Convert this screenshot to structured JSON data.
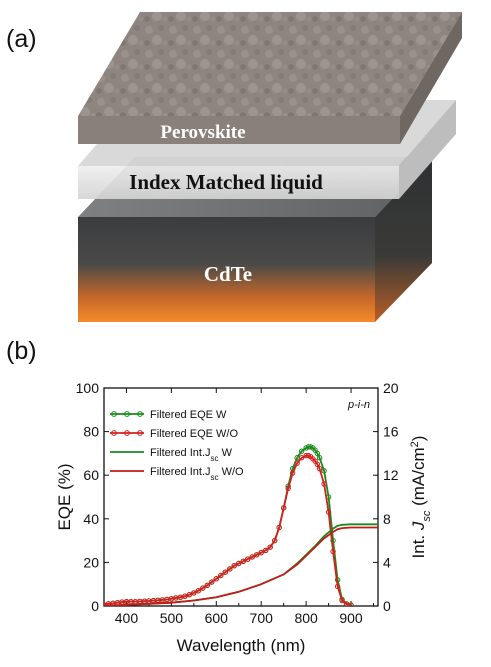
{
  "panel_a": {
    "label": "(a)",
    "layers": {
      "perovskite": "Perovskite",
      "liquid": "Index Matched liquid",
      "cdte": "CdTe"
    }
  },
  "panel_b": {
    "label": "(b)"
  },
  "chart_data": {
    "type": "line",
    "xlabel": "Wavelength (nm)",
    "ylabel": "EQE (%)",
    "y2label_prefix": "Int. ",
    "y2label_italic": "J",
    "y2label_sub": "sc",
    "y2label_suffix": " (mA/cm",
    "y2label_sup": "2",
    "y2label_close": ")",
    "xlim": [
      350,
      960
    ],
    "ylim": [
      0,
      100
    ],
    "y2lim": [
      0,
      20
    ],
    "xticks": [
      "400",
      "500",
      "600",
      "700",
      "800",
      "900"
    ],
    "yticks": [
      "0",
      "20",
      "40",
      "60",
      "80",
      "100"
    ],
    "y2ticks": [
      "0",
      "4",
      "8",
      "12",
      "16",
      "20"
    ],
    "annotation": "p-i-n",
    "legend_position": "top-left",
    "grid": false,
    "series": [
      {
        "name": "Filtered EQE  W",
        "name_main": "Filtered EQE  W",
        "color": "#1a8a1a",
        "axis": "left",
        "markers": true,
        "x": [
          350,
          360,
          370,
          380,
          390,
          400,
          410,
          420,
          430,
          440,
          450,
          460,
          470,
          480,
          490,
          500,
          510,
          520,
          530,
          540,
          550,
          560,
          570,
          580,
          590,
          600,
          610,
          620,
          630,
          640,
          650,
          660,
          670,
          680,
          690,
          700,
          710,
          720,
          730,
          740,
          750,
          760,
          770,
          780,
          790,
          800,
          805,
          810,
          815,
          820,
          825,
          830,
          840,
          850,
          860,
          870,
          880,
          890,
          900
        ],
        "y": [
          0.5,
          1.0,
          1.2,
          1.5,
          1.8,
          2.0,
          2.0,
          2.0,
          2.1,
          2.2,
          2.3,
          2.5,
          2.6,
          2.8,
          3.0,
          3.3,
          3.7,
          4.0,
          4.5,
          5.2,
          6.0,
          7.0,
          8.2,
          9.5,
          11.0,
          12.5,
          14.0,
          15.5,
          17.0,
          18.5,
          19.5,
          20.5,
          21.5,
          22.5,
          23.5,
          24.5,
          25.5,
          27.0,
          30.0,
          36.0,
          45.0,
          55.0,
          63.0,
          68.0,
          71.0,
          72.5,
          73.0,
          73.0,
          72.5,
          71.5,
          70.0,
          68.0,
          62.0,
          50.0,
          30.0,
          12.0,
          3.0,
          1.0,
          0.5
        ]
      },
      {
        "name": "Filtered EQE  W/O",
        "name_main": "Filtered EQE  W/O",
        "color": "#d42020",
        "axis": "left",
        "markers": true,
        "x": [
          350,
          360,
          370,
          380,
          390,
          400,
          410,
          420,
          430,
          440,
          450,
          460,
          470,
          480,
          490,
          500,
          510,
          520,
          530,
          540,
          550,
          560,
          570,
          580,
          590,
          600,
          610,
          620,
          630,
          640,
          650,
          660,
          670,
          680,
          690,
          700,
          710,
          720,
          730,
          740,
          750,
          760,
          770,
          780,
          790,
          800,
          805,
          810,
          815,
          820,
          825,
          830,
          840,
          850,
          860,
          870,
          880,
          890,
          900
        ],
        "y": [
          0.5,
          1.0,
          1.2,
          1.5,
          1.8,
          2.0,
          2.0,
          2.0,
          2.1,
          2.2,
          2.3,
          2.5,
          2.6,
          2.8,
          3.0,
          3.3,
          3.7,
          4.0,
          4.5,
          5.2,
          6.0,
          7.0,
          8.2,
          9.5,
          11.0,
          12.5,
          14.0,
          15.5,
          17.0,
          18.5,
          19.5,
          20.5,
          21.5,
          22.5,
          23.5,
          24.5,
          25.5,
          27.0,
          30.0,
          36.0,
          45.0,
          54.0,
          61.0,
          65.5,
          68.0,
          69.0,
          69.0,
          68.5,
          67.5,
          66.5,
          65.0,
          63.0,
          56.0,
          43.0,
          25.0,
          9.0,
          2.5,
          0.8,
          0.4
        ]
      },
      {
        "name": "Filtered Int.Jsc  W",
        "name_main": "Filtered Int.J",
        "name_sub": "sc",
        "name_tail": "  W",
        "color": "#1a8a1a",
        "axis": "right",
        "markers": false,
        "x": [
          350,
          400,
          450,
          500,
          550,
          600,
          650,
          700,
          750,
          780,
          800,
          820,
          840,
          860,
          870,
          880,
          900,
          960
        ],
        "y": [
          0.0,
          0.1,
          0.2,
          0.3,
          0.5,
          0.8,
          1.3,
          2.0,
          2.9,
          3.9,
          4.7,
          5.5,
          6.4,
          7.1,
          7.35,
          7.45,
          7.5,
          7.5
        ]
      },
      {
        "name": "Filtered Int.Jsc  W/O",
        "name_main": "Filtered Int.J",
        "name_sub": "sc",
        "name_tail": "  W/O",
        "color": "#c41a1a",
        "axis": "right",
        "markers": false,
        "x": [
          350,
          400,
          450,
          500,
          550,
          600,
          650,
          700,
          750,
          780,
          800,
          820,
          840,
          860,
          870,
          880,
          900,
          960
        ],
        "y": [
          0.0,
          0.1,
          0.2,
          0.3,
          0.5,
          0.8,
          1.3,
          2.0,
          2.9,
          3.8,
          4.6,
          5.4,
          6.2,
          6.8,
          7.05,
          7.15,
          7.2,
          7.2
        ]
      }
    ]
  }
}
